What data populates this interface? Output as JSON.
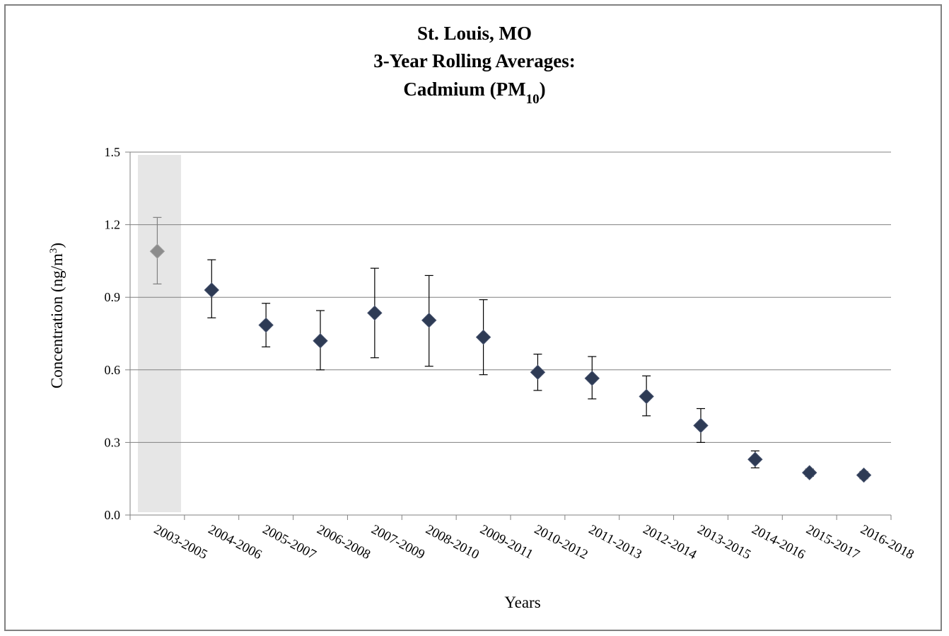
{
  "chart_data": {
    "type": "scatter",
    "title_lines": [
      {
        "text": "St. Louis, MO",
        "sub": "",
        "after": ""
      },
      {
        "text": "3-Year Rolling Averages:",
        "sub": "",
        "after": ""
      },
      {
        "text": "Cadmium (PM",
        "sub": "10",
        "after": ")"
      }
    ],
    "xlabel": "Years",
    "ylabel": "Concentration (ng/m",
    "ylabel_sup": "3",
    "ylabel_after": ")",
    "ylim": [
      0,
      1.5
    ],
    "yticks": [
      "0.0",
      "0.3",
      "0.6",
      "0.9",
      "1.2",
      "1.5"
    ],
    "ytick_values": [
      0,
      0.3,
      0.6,
      0.9,
      1.2,
      1.5
    ],
    "grid": true,
    "shaded_categories": [
      "2003-2005"
    ],
    "categories": [
      "2003-2005",
      "2004-2006",
      "2005-2007",
      "2006-2008",
      "2007-2009",
      "2008-2010",
      "2009-2011",
      "2010-2012",
      "2011-2013",
      "2012-2014",
      "2013-2015",
      "2014-2016",
      "2015-2017",
      "2016-2018"
    ],
    "values": [
      1.09,
      0.93,
      0.785,
      0.72,
      0.835,
      0.805,
      0.735,
      0.59,
      0.565,
      0.49,
      0.37,
      0.23,
      0.175,
      0.165
    ],
    "error_low": [
      0.955,
      0.815,
      0.695,
      0.6,
      0.65,
      0.615,
      0.58,
      0.515,
      0.48,
      0.41,
      0.3,
      0.195,
      0.16,
      0.15
    ],
    "error_high": [
      1.23,
      1.055,
      0.875,
      0.845,
      1.02,
      0.99,
      0.89,
      0.665,
      0.655,
      0.575,
      0.44,
      0.265,
      0.19,
      0.18
    ],
    "colors": {
      "marker": "#2e3b55",
      "shaded_marker": "#8c8c8c",
      "shade": "#e6e6e6",
      "grid": "#808080"
    }
  }
}
